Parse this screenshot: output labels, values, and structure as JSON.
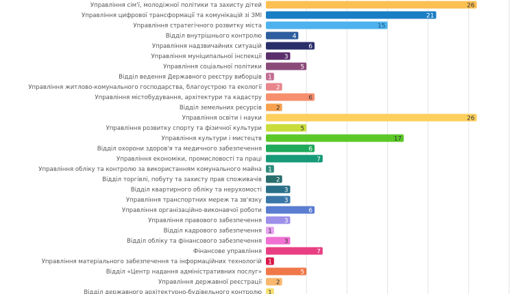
{
  "chart_data": {
    "type": "bar",
    "orientation": "horizontal",
    "xlim": [
      0,
      30
    ],
    "grid": true,
    "gridline_step": 5,
    "legend": "none",
    "categories": [
      "Управління сім'ї, молодіжної політики та захисту дітей",
      "Управління цифрової трансформації та комунікацій зі ЗМІ",
      "Управління стратегічного розвитку міста",
      "Відділ внутрішнього контролю",
      "Управління надзвичайних ситуацій",
      "Управління муніципальної інспекції",
      "Управління соціальної політики",
      "Відділ ведення Державного реєстру виборців",
      "Управління житлово-комунального господарства, благоустрою та екології",
      "Управління містобудування, архітектури та кадастру",
      "Відділ земельних ресурсів",
      "Управління освіти і науки",
      "Управління розвитку спорту та фізичної культури",
      "Управління культури і мистецтв",
      "Відділ охорони здоров'я та медичного забезпечення",
      "Управління економіки, промисловості та праці",
      "Управління обліку та контролю за використанням комунального майна",
      "Відділ торгівлі, побуту та захисту прав споживачів",
      "Відділ квартирного обліку та нерухомості",
      "Управління транспортних мереж та зв'язку",
      "Управління організаційно-виконавчої роботи",
      "Управління правового забезпечення",
      "Відділ кадрового забезпечення",
      "Відділ обліку та фінансового забезпечення",
      "Фінансове управління",
      "Управління матеріального забезпечення та інформаційних технологій",
      "Відділ «Центр надання адміністративних послуг»",
      "Управління державної реєстрації",
      "Відділ державного архітектурно-будівельного контролю"
    ],
    "values": [
      26,
      21,
      15,
      4,
      6,
      3,
      5,
      1,
      2,
      6,
      2,
      26,
      5,
      17,
      6,
      7,
      1,
      2,
      3,
      3,
      6,
      3,
      1,
      3,
      7,
      1,
      5,
      2,
      1
    ],
    "colors": [
      "#fcbf52",
      "#1a7ec4",
      "#4db2ee",
      "#2f5e9e",
      "#2a2f6a",
      "#5b2f6c",
      "#8a4a78",
      "#c36d92",
      "#e8868c",
      "#f78f6e",
      "#f7a14f",
      "#fdcf5c",
      "#c9dd3a",
      "#5bc828",
      "#1fa95a",
      "#169a77",
      "#2e8b7c",
      "#296d6d",
      "#2a6f88",
      "#3a77a8",
      "#5a7cd1",
      "#9d90e8",
      "#e7a2f2",
      "#f171d2",
      "#e83f82",
      "#d81848",
      "#f07748",
      "#fab86f",
      "#f7e072"
    ],
    "value_label_colors": [
      "#333",
      "#fff",
      "#1d4f7a",
      "#fff",
      "#fff",
      "#fff",
      "#fff",
      "#fff",
      "#fff",
      "#333",
      "#333",
      "#333",
      "#333",
      "#333",
      "#fff",
      "#fff",
      "#fff",
      "#fff",
      "#fff",
      "#fff",
      "#fff",
      "#fff",
      "#333",
      "#333",
      "#fff",
      "#fff",
      "#fff",
      "#333",
      "#333"
    ]
  }
}
